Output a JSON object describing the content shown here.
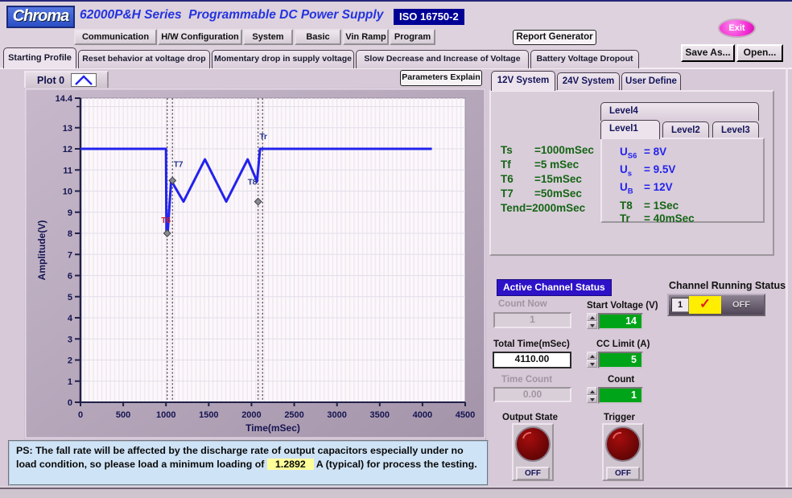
{
  "header": {
    "logo": "Chroma",
    "title": "62000P&H Series  Programmable DC Power Supply",
    "badge": "ISO 16750-2",
    "menu": [
      "Communication",
      "H/W Configuration",
      "System",
      "Basic",
      "Vin Ramp",
      "Program"
    ],
    "report_button": "Report Generator",
    "exit_button": "Exit",
    "save_as_button": "Save As...",
    "open_button": "Open..."
  },
  "tabs": [
    "Starting Profile",
    "Reset behavior at voltage drop",
    "Momentary drop in supply voltage",
    "Slow Decrease and Increase of Voltage",
    "Battery Voltage Dropout"
  ],
  "plot": {
    "params_button": "Parameters Explain"
  },
  "chart_data": {
    "type": "line",
    "title": "Plot 0",
    "xlabel": "Time(mSec)",
    "ylabel": "Amplitude(V)",
    "xlim": [
      0,
      4500
    ],
    "ylim": [
      0,
      14.4
    ],
    "xticks": [
      0,
      500,
      1000,
      1500,
      2000,
      2500,
      3000,
      3500,
      4000,
      4500
    ],
    "yticks": [
      0,
      1,
      2,
      3,
      4,
      5,
      6,
      7,
      8,
      9,
      10,
      11,
      12,
      13,
      14.4
    ],
    "yticks_minor": [
      14
    ],
    "line_color": "#2222ee",
    "grid": true,
    "points": [
      [
        0,
        12
      ],
      [
        1000,
        12
      ],
      [
        1005,
        8
      ],
      [
        1020,
        8
      ],
      [
        1060,
        10.5
      ],
      [
        1205,
        9.5
      ],
      [
        1455,
        11.5
      ],
      [
        1705,
        9.5
      ],
      [
        1955,
        11.5
      ],
      [
        2065,
        10.45
      ],
      [
        2100,
        12
      ],
      [
        4110,
        12
      ]
    ],
    "cursors": [
      1014,
      1076,
      2077,
      2130
    ],
    "markers": [
      [
        1014,
        8.0
      ],
      [
        1076,
        10.5
      ],
      [
        2077,
        9.5
      ]
    ],
    "annotations": [
      {
        "text": "T7",
        "x": 1090,
        "y": 11.15,
        "color": "#223388"
      },
      {
        "text": "T6",
        "x": 945,
        "y": 8.5,
        "color": "#cc2222"
      },
      {
        "text": "T8",
        "x": 1955,
        "y": 10.3,
        "color": "#223388"
      },
      {
        "text": "Tr",
        "x": 2095,
        "y": 12.45,
        "color": "#223388"
      }
    ]
  },
  "system_tabs": [
    "12V System",
    "24V System",
    "User Define"
  ],
  "timing_params": [
    {
      "name": "Ts",
      "value": "=1000mSec"
    },
    {
      "name": "Tf",
      "value": "=5 mSec"
    },
    {
      "name": "T6",
      "value": "=15mSec"
    },
    {
      "name": "T7",
      "value": "=50mSec"
    },
    {
      "name": "Tend",
      "value": "=2000mSec"
    }
  ],
  "level_tabs": [
    "Level4",
    "Level1",
    "Level2",
    "Level3"
  ],
  "level_values": [
    {
      "base": "U",
      "sub": "S6",
      "value": "= 8V"
    },
    {
      "base": "U",
      "sub": "s",
      "value": "= 9.5V"
    },
    {
      "base": "U",
      "sub": "B",
      "value": "= 12V"
    },
    {
      "base": "T8",
      "sub": "",
      "value": "= 1Sec"
    },
    {
      "base": "Tr",
      "sub": "",
      "value": "= 40mSec"
    }
  ],
  "status": {
    "banner": "Active Channel Status",
    "count_now_label": "Count Now",
    "count_now": "1",
    "total_time_label": "Total Time(mSec)",
    "total_time": "4110.00",
    "time_count_label": "Time Count",
    "time_count": "0.00",
    "start_voltage_label": "Start Voltage (V)",
    "start_voltage": "14",
    "cc_limit_label": "CC Limit (A)",
    "cc_limit": "5",
    "count_label": "Count",
    "count": "1",
    "channel_running_label": "Channel Running Status",
    "channel_number": "1",
    "check_glyph": "✓",
    "channel_state": "OFF",
    "output_state_label": "Output State",
    "output_state": "OFF",
    "trigger_label": "Trigger",
    "trigger_state": "OFF"
  },
  "ps_note": {
    "before": "PS: The fall rate will be affected by the discharge rate of output capacitors especially under no load condition, so please load a minimum loading of ",
    "value": "1.2892",
    "after": " A (typical) for process the testing."
  }
}
